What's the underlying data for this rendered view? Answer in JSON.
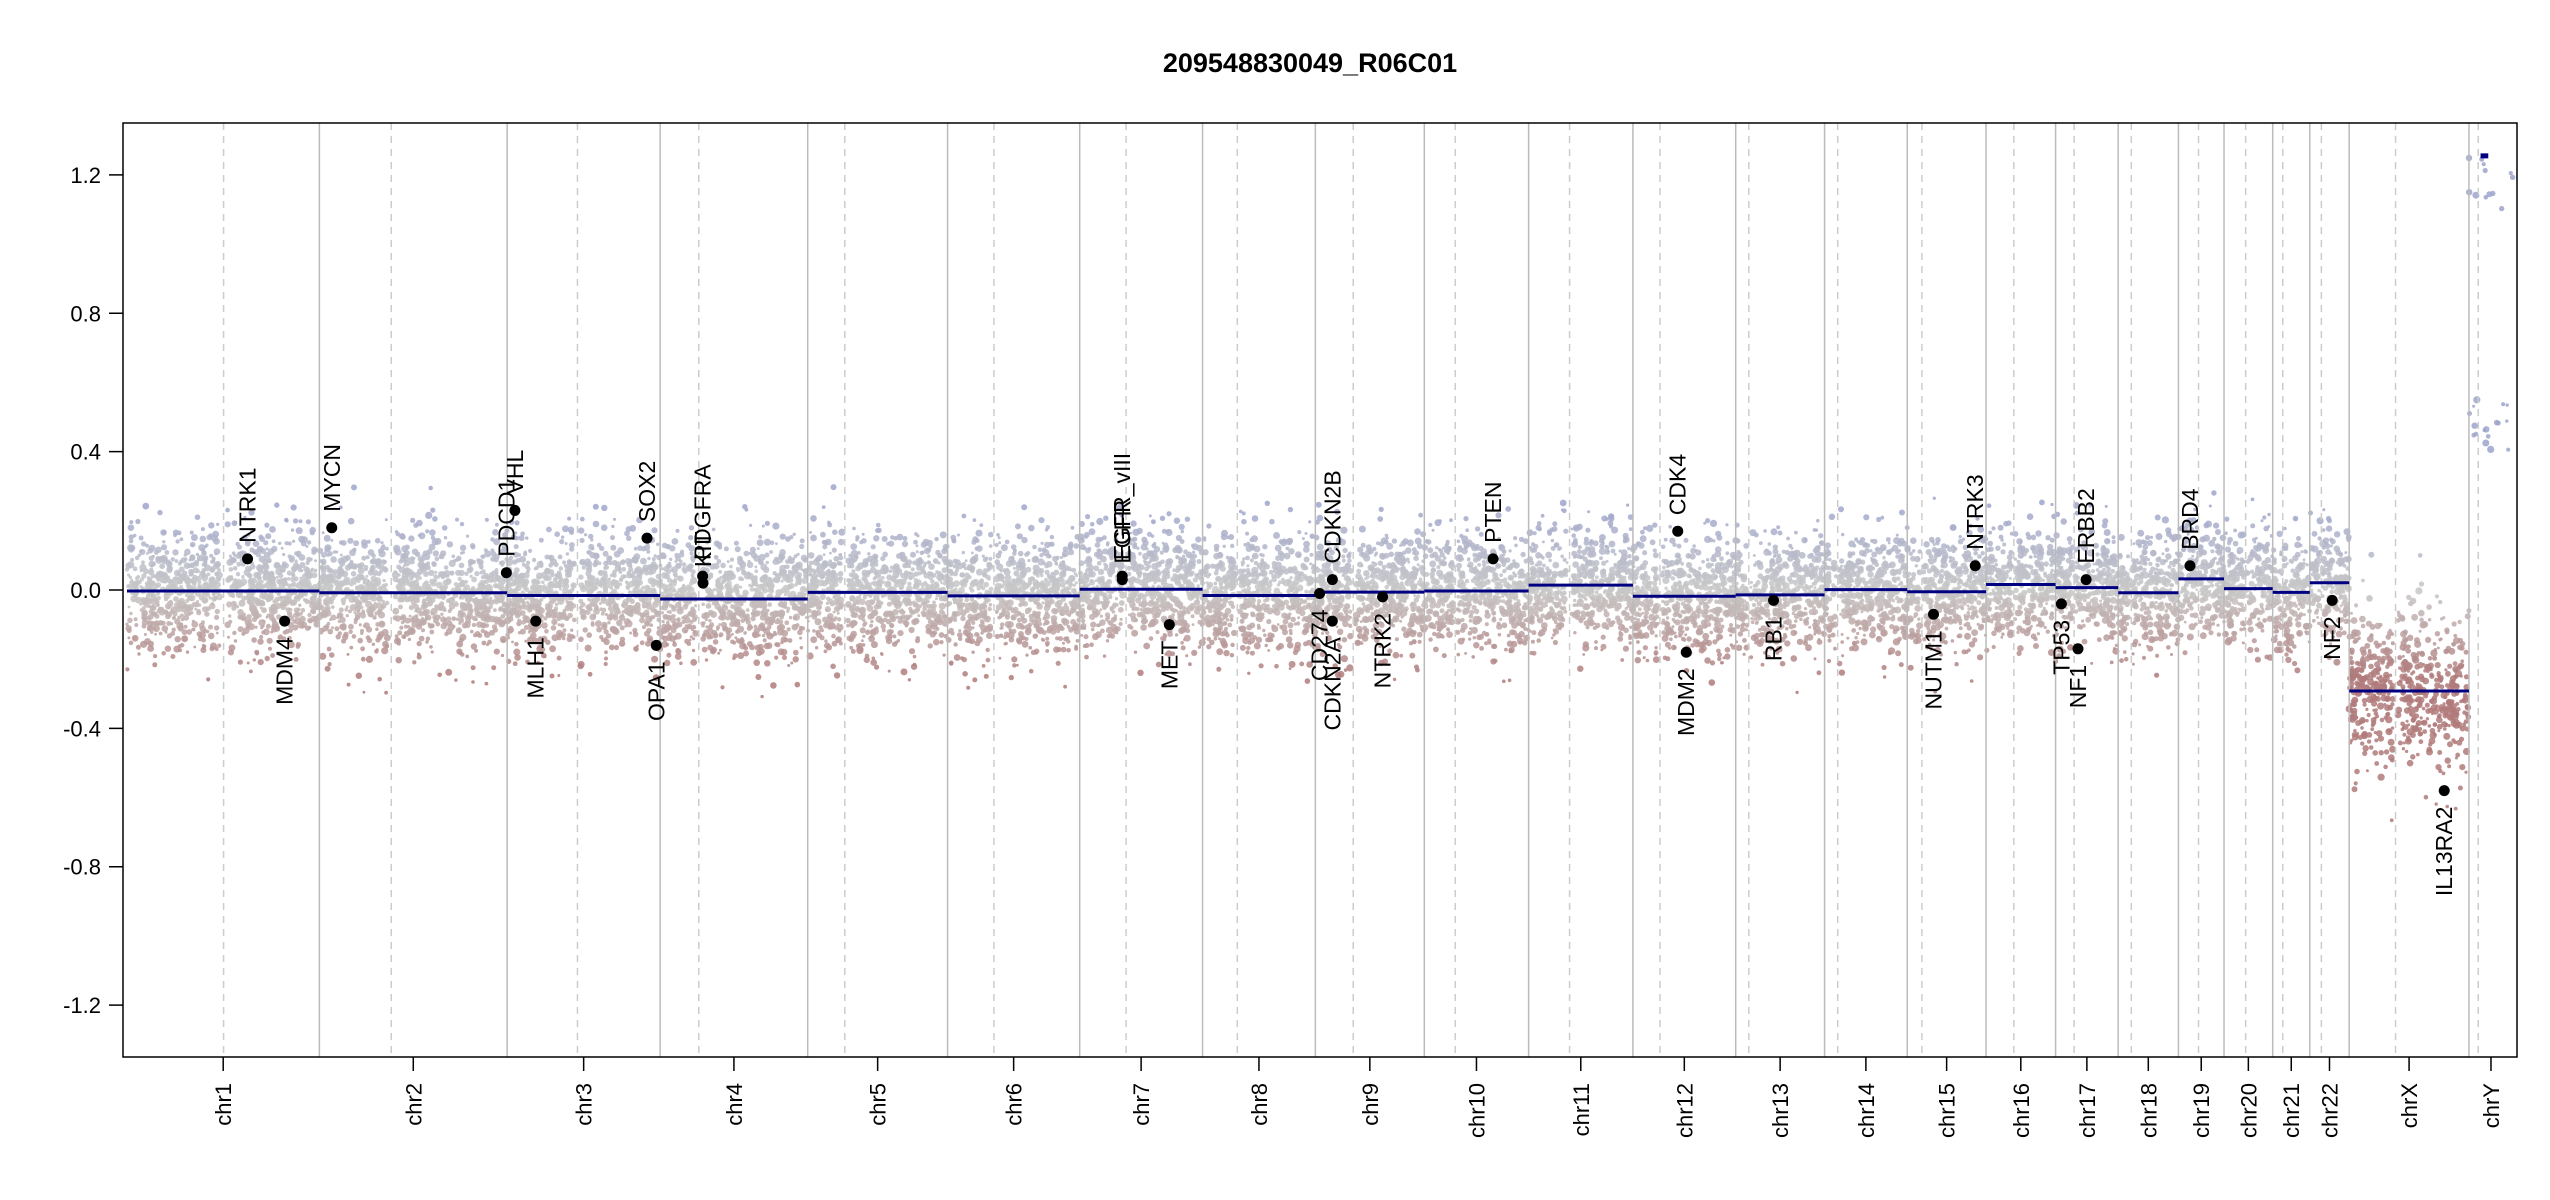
{
  "chart_data": {
    "type": "scatter",
    "title": "209548830049_R06C01",
    "xlabel": "",
    "ylabel": "",
    "ylim": [
      -1.35,
      1.35
    ],
    "y_ticks": [
      1.2,
      0.8,
      0.4,
      0.0,
      -0.4,
      -0.8,
      -1.2
    ],
    "y_tick_labels": [
      "1.2",
      "0.8",
      "0.4",
      "0.0",
      "-0.4",
      "-0.8",
      "-1.2"
    ],
    "grid": false,
    "colors": {
      "segment": "#000080",
      "positive": "#9ea4cc",
      "negative": "#b07a7a",
      "neutral": "#c8c8c8",
      "boundary": "#bbbbbb",
      "centromere": "#cccccc"
    },
    "chromosomes": [
      {
        "name": "chr1",
        "length": 249,
        "centromere": 125,
        "segments": [
          {
            "from": 0,
            "to": 249,
            "value": -0.003
          }
        ]
      },
      {
        "name": "chr2",
        "length": 243,
        "centromere": 93,
        "segments": [
          {
            "from": 0,
            "to": 243,
            "value": -0.008
          }
        ]
      },
      {
        "name": "chr3",
        "length": 198,
        "centromere": 91,
        "segments": [
          {
            "from": 0,
            "to": 198,
            "value": -0.016
          }
        ]
      },
      {
        "name": "chr4",
        "length": 191,
        "centromere": 50,
        "segments": [
          {
            "from": 0,
            "to": 191,
            "value": -0.026
          }
        ]
      },
      {
        "name": "chr5",
        "length": 181,
        "centromere": 48,
        "segments": [
          {
            "from": 0,
            "to": 181,
            "value": -0.007
          }
        ]
      },
      {
        "name": "chr6",
        "length": 171,
        "centromere": 60,
        "segments": [
          {
            "from": 0,
            "to": 171,
            "value": -0.017
          }
        ]
      },
      {
        "name": "chr7",
        "length": 159,
        "centromere": 60,
        "segments": [
          {
            "from": 0,
            "to": 159,
            "value": 0.002
          }
        ]
      },
      {
        "name": "chr8",
        "length": 146,
        "centromere": 45,
        "segments": [
          {
            "from": 0,
            "to": 146,
            "value": -0.016
          }
        ]
      },
      {
        "name": "chr9",
        "length": 141,
        "centromere": 49,
        "segments": [
          {
            "from": 0,
            "to": 141,
            "value": -0.006
          }
        ]
      },
      {
        "name": "chr10",
        "length": 135,
        "centromere": 40,
        "segments": [
          {
            "from": 0,
            "to": 135,
            "value": -0.003
          }
        ]
      },
      {
        "name": "chr11",
        "length": 135,
        "centromere": 53,
        "segments": [
          {
            "from": 0,
            "to": 135,
            "value": 0.014
          }
        ]
      },
      {
        "name": "chr12",
        "length": 133,
        "centromere": 35,
        "segments": [
          {
            "from": 0,
            "to": 133,
            "value": -0.018
          }
        ]
      },
      {
        "name": "chr13",
        "length": 115,
        "centromere": 17,
        "segments": [
          {
            "from": 0,
            "to": 115,
            "value": -0.014
          }
        ]
      },
      {
        "name": "chr14",
        "length": 107,
        "centromere": 17,
        "segments": [
          {
            "from": 0,
            "to": 107,
            "value": 0.001
          }
        ]
      },
      {
        "name": "chr15",
        "length": 102,
        "centromere": 19,
        "segments": [
          {
            "from": 0,
            "to": 102,
            "value": -0.005
          }
        ]
      },
      {
        "name": "chr16",
        "length": 90,
        "centromere": 36,
        "segments": [
          {
            "from": 0,
            "to": 90,
            "value": 0.016
          }
        ]
      },
      {
        "name": "chr17",
        "length": 81,
        "centromere": 24,
        "segments": [
          {
            "from": 0,
            "to": 81,
            "value": 0.007
          }
        ]
      },
      {
        "name": "chr18",
        "length": 78,
        "centromere": 17,
        "segments": [
          {
            "from": 0,
            "to": 78,
            "value": -0.008
          }
        ]
      },
      {
        "name": "chr19",
        "length": 59,
        "centromere": 26,
        "segments": [
          {
            "from": 0,
            "to": 59,
            "value": 0.032
          }
        ]
      },
      {
        "name": "chr20",
        "length": 63,
        "centromere": 28,
        "segments": [
          {
            "from": 0,
            "to": 63,
            "value": 0.004
          }
        ]
      },
      {
        "name": "chr21",
        "length": 48,
        "centromere": 13,
        "segments": [
          {
            "from": 0,
            "to": 48,
            "value": -0.007
          }
        ]
      },
      {
        "name": "chr22",
        "length": 51,
        "centromere": 15,
        "segments": [
          {
            "from": 0,
            "to": 51,
            "value": 0.021
          }
        ]
      },
      {
        "name": "chrX",
        "length": 155,
        "centromere": 60,
        "segments": [
          {
            "from": 0,
            "to": 155,
            "value": -0.292
          }
        ]
      },
      {
        "name": "chrY",
        "length": 57,
        "centromere": 12,
        "segments": [
          {
            "from": 15,
            "to": 25,
            "value": 1.255
          }
        ]
      }
    ],
    "genes": [
      {
        "name": "NTRK1",
        "chr": "chr1",
        "pos": 156,
        "value": 0.09,
        "label_side": "above"
      },
      {
        "name": "MDM4",
        "chr": "chr1",
        "pos": 204,
        "value": -0.09,
        "label_side": "below"
      },
      {
        "name": "MYCN",
        "chr": "chr2",
        "pos": 16,
        "value": 0.18,
        "label_side": "above"
      },
      {
        "name": "PDCD1",
        "chr": "chr2",
        "pos": 242,
        "value": 0.05,
        "label_side": "above"
      },
      {
        "name": "VHL",
        "chr": "chr3",
        "pos": 10,
        "value": 0.23,
        "label_side": "above"
      },
      {
        "name": "MLH1",
        "chr": "chr3",
        "pos": 37,
        "value": -0.09,
        "label_side": "below"
      },
      {
        "name": "SOX2",
        "chr": "chr3",
        "pos": 181,
        "value": 0.15,
        "label_side": "above"
      },
      {
        "name": "OPA1",
        "chr": "chr3",
        "pos": 193,
        "value": -0.16,
        "label_side": "below"
      },
      {
        "name": "PDGFRA",
        "chr": "chr4",
        "pos": 55,
        "value": 0.04,
        "label_side": "above"
      },
      {
        "name": "KIT",
        "chr": "chr4",
        "pos": 55.5,
        "value": 0.02,
        "label_side": "above"
      },
      {
        "name": "EGFR_vIII",
        "chr": "chr7",
        "pos": 55,
        "value": 0.04,
        "label_side": "above"
      },
      {
        "name": "EGFR",
        "chr": "chr7",
        "pos": 55.1,
        "value": 0.03,
        "label_side": "above"
      },
      {
        "name": "MET",
        "chr": "chr7",
        "pos": 116,
        "value": -0.1,
        "label_side": "below"
      },
      {
        "name": "CD274",
        "chr": "chr9",
        "pos": 5.5,
        "value": -0.01,
        "label_side": "below"
      },
      {
        "name": "CDKN2A",
        "chr": "chr9",
        "pos": 21.9,
        "value": -0.09,
        "label_side": "below"
      },
      {
        "name": "CDKN2B",
        "chr": "chr9",
        "pos": 22,
        "value": 0.03,
        "label_side": "above"
      },
      {
        "name": "NTRK2",
        "chr": "chr9",
        "pos": 87,
        "value": -0.02,
        "label_side": "below"
      },
      {
        "name": "PTEN",
        "chr": "chr10",
        "pos": 89,
        "value": 0.09,
        "label_side": "above"
      },
      {
        "name": "CDK4",
        "chr": "chr12",
        "pos": 58,
        "value": 0.17,
        "label_side": "above"
      },
      {
        "name": "MDM2",
        "chr": "chr12",
        "pos": 69,
        "value": -0.18,
        "label_side": "below"
      },
      {
        "name": "RB1",
        "chr": "chr13",
        "pos": 49,
        "value": -0.03,
        "label_side": "below"
      },
      {
        "name": "NUTM1",
        "chr": "chr15",
        "pos": 34,
        "value": -0.07,
        "label_side": "below"
      },
      {
        "name": "NTRK3",
        "chr": "chr15",
        "pos": 88,
        "value": 0.07,
        "label_side": "above"
      },
      {
        "name": "TP53",
        "chr": "chr17",
        "pos": 7.5,
        "value": -0.04,
        "label_side": "below"
      },
      {
        "name": "NF1",
        "chr": "chr17",
        "pos": 29,
        "value": -0.17,
        "label_side": "below"
      },
      {
        "name": "ERBB2",
        "chr": "chr17",
        "pos": 39.5,
        "value": 0.03,
        "label_side": "above"
      },
      {
        "name": "BRD4",
        "chr": "chr19",
        "pos": 15,
        "value": 0.07,
        "label_side": "above"
      },
      {
        "name": "NF2",
        "chr": "chr22",
        "pos": 29,
        "value": -0.03,
        "label_side": "below"
      },
      {
        "name": "IL13RA2",
        "chr": "chrX",
        "pos": 123,
        "value": -0.58,
        "label_side": "below"
      }
    ]
  }
}
